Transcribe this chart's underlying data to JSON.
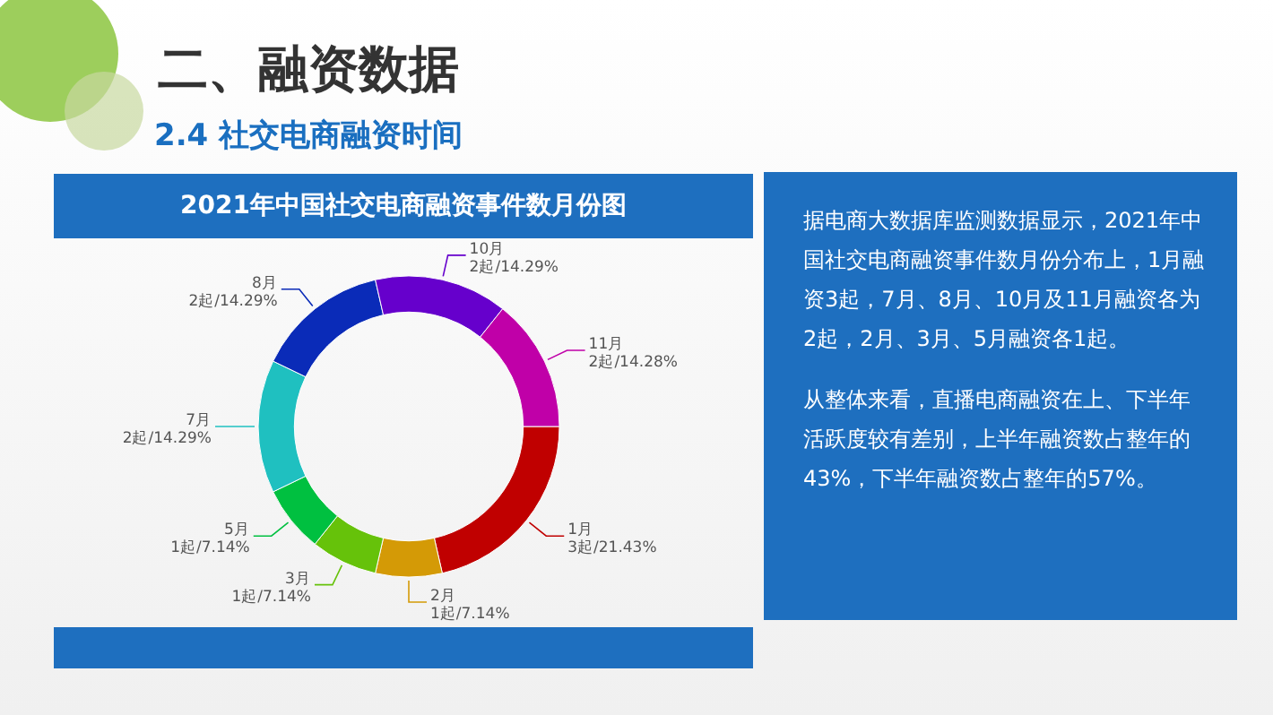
{
  "chart_data": {
    "type": "donut",
    "title": "2021年中国社交电商融资事件数月份图",
    "categories": [
      "1月",
      "2月",
      "3月",
      "5月",
      "7月",
      "8月",
      "10月",
      "11月"
    ],
    "values": [
      3,
      1,
      1,
      1,
      2,
      2,
      2,
      2
    ],
    "colors": [
      "#c00000",
      "#d49a06",
      "#66c20a",
      "#00c040",
      "#1fc0c0",
      "#0a2bb8",
      "#6600cc",
      "#c000a8"
    ],
    "value_labels": [
      "3起/21.43%",
      "1起/7.14%",
      "1起/7.14%",
      "1起/7.14%",
      "2起/14.29%",
      "2起/14.29%",
      "2起/14.29%",
      "2起/14.28%"
    ],
    "annotations": [
      "二、融资数据",
      "2.4 社交电商融资时间",
      "据电商大数据库监测数据显示，2021年中国社交电商融资事件数月份分布上，1月融资3起，7月、8月、10月及11月融资各为2起，2月、3月、5月融资各1起。",
      "从整体来看，直播电商融资在上、下半年活跃度较有差别，上半年融资数占整年的43%，下半年融资数占整年的57%。"
    ]
  }
}
